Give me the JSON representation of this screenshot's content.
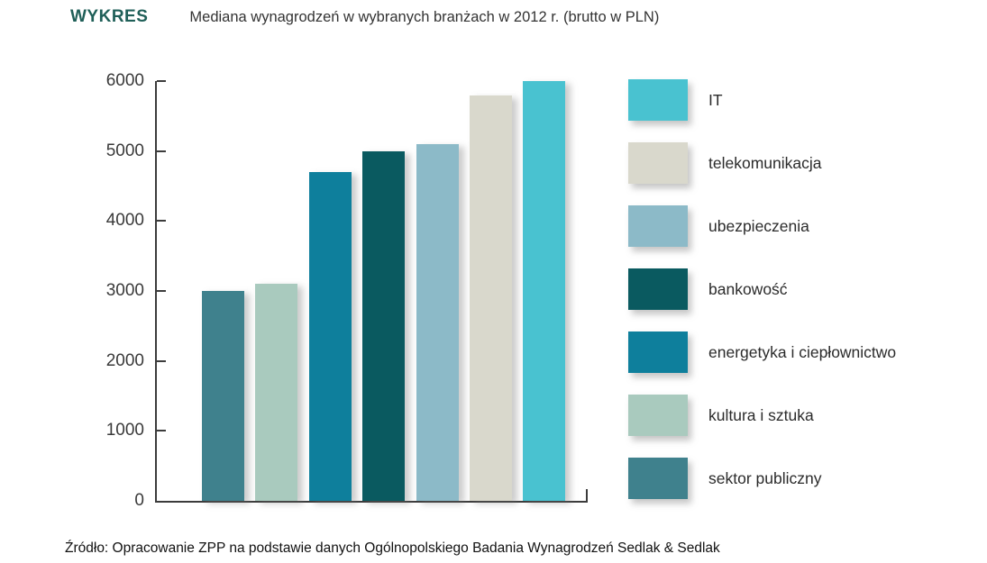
{
  "header": {
    "kicker": "WYKRES",
    "title": "Mediana wynagrodzeń w wybranych branżach w 2012 r. (brutto w PLN)"
  },
  "footer": {
    "source": "Źródło: Opracowanie ZPP na podstawie danych Ogólnopolskiego Badania Wynagrodzeń Sedlak & Sedlak"
  },
  "colors": {
    "kicker_accent": "#1f5f58",
    "axis": "#3c3c3c",
    "tick_text": "#3a3a3a",
    "legend_text": "#2b2b2b",
    "background": "#ffffff"
  },
  "chart_data": {
    "type": "bar",
    "title": "Mediana wynagrodzeń w wybranych branżach w 2012 r. (brutto w PLN)",
    "xlabel": "",
    "ylabel": "",
    "ylim": [
      0,
      6000
    ],
    "yticks": [
      0,
      1000,
      2000,
      3000,
      4000,
      5000,
      6000
    ],
    "grid": false,
    "legend_position": "right",
    "categories": [
      "sektor publiczny",
      "kultura i sztuka",
      "energetyka i ciepłownictwo",
      "bankowość",
      "ubezpieczenia",
      "telekomunikacja",
      "IT"
    ],
    "values": [
      3000,
      3100,
      4700,
      5000,
      5100,
      5800,
      6000
    ],
    "bar_colors": [
      "#3f818d",
      "#a9cabe",
      "#0e7f9c",
      "#0a5a60",
      "#8cbac8",
      "#d9d8cc",
      "#49c2d0"
    ],
    "legend": [
      {
        "label": "IT",
        "color": "#49c2d0"
      },
      {
        "label": "telekomunikacja",
        "color": "#d9d8cc"
      },
      {
        "label": "ubezpieczenia",
        "color": "#8cbac8"
      },
      {
        "label": "bankowość",
        "color": "#0a5a60"
      },
      {
        "label": "energetyka i ciepłownictwo",
        "color": "#0e7f9c"
      },
      {
        "label": "kultura i sztuka",
        "color": "#a9cabe"
      },
      {
        "label": "sektor publiczny",
        "color": "#3f818d"
      }
    ]
  }
}
